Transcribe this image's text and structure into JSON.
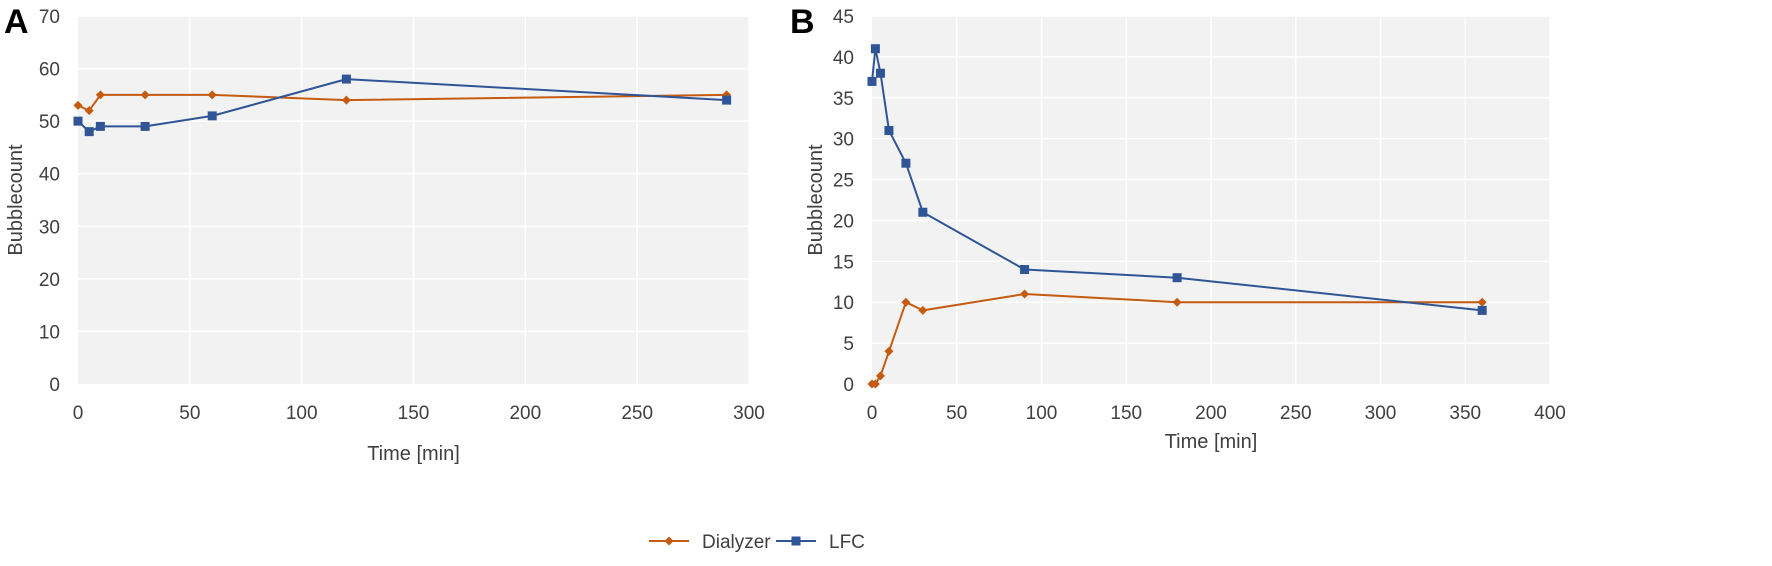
{
  "chart_data": [
    {
      "panel_label": "A",
      "type": "line",
      "xlabel": "Time [min]",
      "ylabel": "Bubblecount",
      "xlim": [
        0,
        300
      ],
      "ylim": [
        0,
        70
      ],
      "xticks": [
        0,
        50,
        100,
        150,
        200,
        250,
        300
      ],
      "yticks": [
        0,
        10,
        20,
        30,
        40,
        50,
        60,
        70
      ],
      "grid": true,
      "series": [
        {
          "name": "Dialyzer",
          "color": "#C55A11",
          "marker": "diamond",
          "x": [
            0,
            5,
            10,
            30,
            60,
            120,
            290
          ],
          "y": [
            53,
            52,
            55,
            55,
            55,
            54,
            55
          ]
        },
        {
          "name": "LFC",
          "color": "#2F5597",
          "marker": "square",
          "x": [
            0,
            5,
            10,
            30,
            60,
            120,
            290
          ],
          "y": [
            50,
            48,
            49,
            49,
            51,
            58,
            54
          ]
        }
      ]
    },
    {
      "panel_label": "B",
      "type": "line",
      "xlabel": "Time [min]",
      "ylabel": "Bubblecount",
      "xlim": [
        0,
        400
      ],
      "ylim": [
        0,
        45
      ],
      "xticks": [
        0,
        50,
        100,
        150,
        200,
        250,
        300,
        350,
        400
      ],
      "yticks": [
        0,
        5,
        10,
        15,
        20,
        25,
        30,
        35,
        40,
        45
      ],
      "grid": true,
      "series": [
        {
          "name": "Dialyzer",
          "color": "#C55A11",
          "marker": "diamond",
          "x": [
            0,
            2,
            5,
            10,
            20,
            30,
            90,
            180,
            360
          ],
          "y": [
            0,
            0,
            1,
            4,
            10,
            9,
            11,
            10,
            10
          ]
        },
        {
          "name": "LFC",
          "color": "#2F5597",
          "marker": "square",
          "x": [
            0,
            2,
            5,
            10,
            20,
            30,
            90,
            180,
            360
          ],
          "y": [
            37,
            41,
            38,
            31,
            27,
            21,
            14,
            13,
            9
          ]
        }
      ]
    }
  ],
  "legend": {
    "placement": "bottom-center",
    "items": [
      {
        "label": "Dialyzer",
        "color": "#C55A11",
        "marker": "diamond"
      },
      {
        "label": "LFC",
        "color": "#2F5597",
        "marker": "square"
      }
    ]
  },
  "colors": {
    "plot_background": "#F2F2F2",
    "grid": "#FFFFFF",
    "axis_text": "#404040"
  }
}
